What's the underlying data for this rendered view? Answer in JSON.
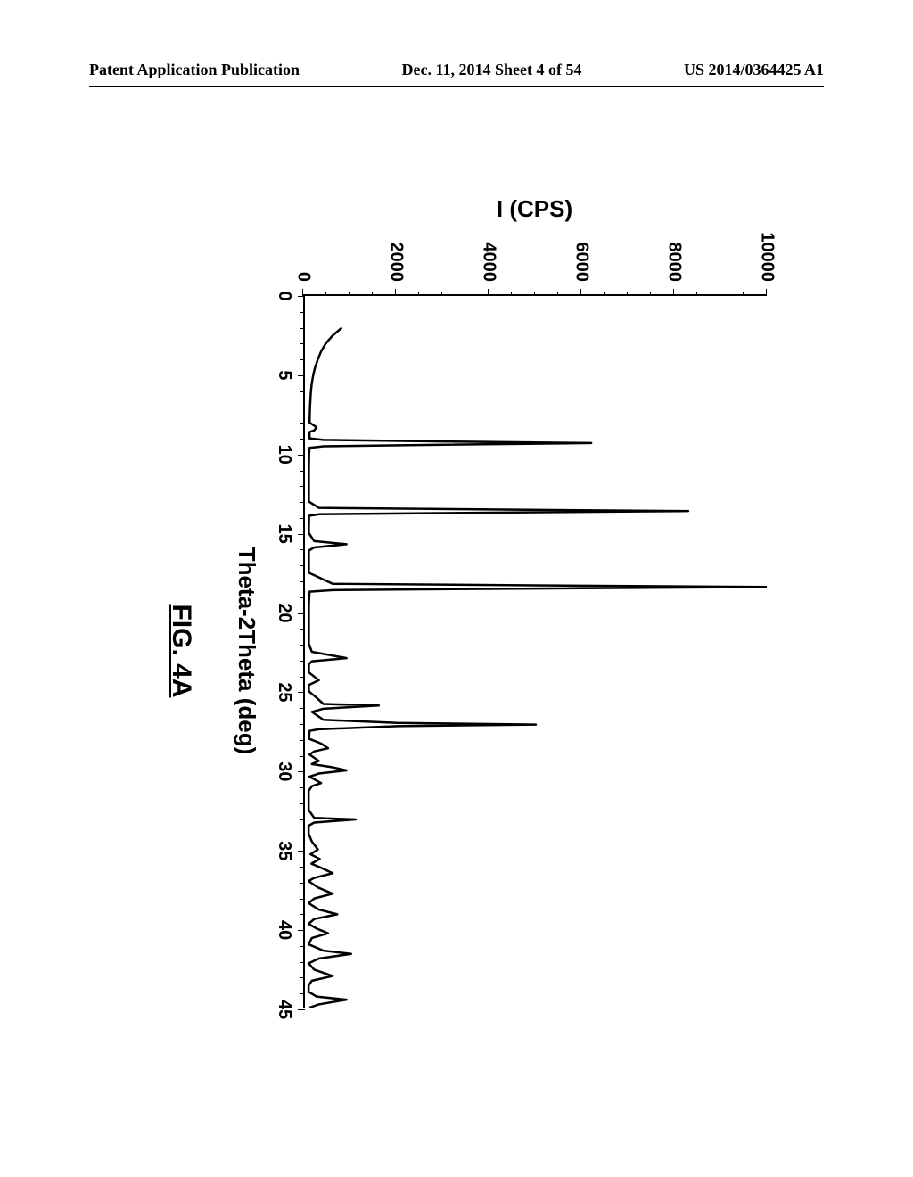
{
  "header": {
    "left": "Patent Application Publication",
    "center": "Dec. 11, 2014  Sheet 4 of 54",
    "right": "US 2014/0364425 A1"
  },
  "chart": {
    "type": "line",
    "x_axis_title": "Theta-2Theta (deg)",
    "y_axis_title": "I (CPS)",
    "figure_caption": "FIG. 4A",
    "xlim": [
      0,
      45
    ],
    "ylim": [
      0,
      10000
    ],
    "xtick_step": 5,
    "ytick_step": 2000,
    "xtick_minor_step": 1,
    "ytick_minor_step": 500,
    "line_color": "#000000",
    "line_width": 2.5,
    "background_color": "#ffffff",
    "title_fontsize": 26,
    "label_fontsize": 20,
    "caption_fontsize": 30,
    "data_points": [
      [
        2.0,
        800
      ],
      [
        2.5,
        600
      ],
      [
        3.0,
        450
      ],
      [
        3.5,
        350
      ],
      [
        4.0,
        280
      ],
      [
        4.5,
        220
      ],
      [
        5.0,
        180
      ],
      [
        5.5,
        150
      ],
      [
        6.0,
        130
      ],
      [
        6.5,
        120
      ],
      [
        7.0,
        110
      ],
      [
        7.5,
        105
      ],
      [
        8.0,
        100
      ],
      [
        8.3,
        250
      ],
      [
        8.5,
        200
      ],
      [
        8.6,
        100
      ],
      [
        9.0,
        100
      ],
      [
        9.1,
        400
      ],
      [
        9.2,
        3000
      ],
      [
        9.3,
        6200
      ],
      [
        9.4,
        3000
      ],
      [
        9.5,
        400
      ],
      [
        9.6,
        100
      ],
      [
        10.0,
        90
      ],
      [
        11.0,
        85
      ],
      [
        12.0,
        85
      ],
      [
        13.0,
        85
      ],
      [
        13.4,
        300
      ],
      [
        13.5,
        4000
      ],
      [
        13.6,
        8300
      ],
      [
        13.7,
        4000
      ],
      [
        13.8,
        300
      ],
      [
        13.9,
        90
      ],
      [
        14.5,
        85
      ],
      [
        15.0,
        85
      ],
      [
        15.5,
        200
      ],
      [
        15.7,
        900
      ],
      [
        15.9,
        200
      ],
      [
        16.1,
        85
      ],
      [
        17.0,
        85
      ],
      [
        17.5,
        85
      ],
      [
        18.2,
        600
      ],
      [
        18.3,
        5000
      ],
      [
        18.4,
        10200
      ],
      [
        18.5,
        5000
      ],
      [
        18.6,
        600
      ],
      [
        18.7,
        100
      ],
      [
        19.5,
        85
      ],
      [
        20.0,
        85
      ],
      [
        21.0,
        85
      ],
      [
        22.0,
        85
      ],
      [
        22.5,
        150
      ],
      [
        22.9,
        900
      ],
      [
        23.1,
        150
      ],
      [
        23.3,
        85
      ],
      [
        23.8,
        85
      ],
      [
        24.3,
        300
      ],
      [
        24.6,
        85
      ],
      [
        25.0,
        85
      ],
      [
        25.4,
        250
      ],
      [
        25.8,
        400
      ],
      [
        25.9,
        1600
      ],
      [
        26.1,
        400
      ],
      [
        26.3,
        150
      ],
      [
        26.8,
        400
      ],
      [
        27.0,
        2000
      ],
      [
        27.1,
        5000
      ],
      [
        27.2,
        2000
      ],
      [
        27.4,
        300
      ],
      [
        27.5,
        100
      ],
      [
        28.0,
        90
      ],
      [
        28.3,
        350
      ],
      [
        28.6,
        500
      ],
      [
        28.8,
        200
      ],
      [
        29.0,
        100
      ],
      [
        29.4,
        300
      ],
      [
        29.6,
        150
      ],
      [
        29.8,
        600
      ],
      [
        30.0,
        900
      ],
      [
        30.2,
        300
      ],
      [
        30.4,
        100
      ],
      [
        30.8,
        350
      ],
      [
        31.0,
        150
      ],
      [
        31.3,
        80
      ],
      [
        32.0,
        80
      ],
      [
        32.5,
        80
      ],
      [
        33.0,
        200
      ],
      [
        33.1,
        1100
      ],
      [
        33.3,
        200
      ],
      [
        33.5,
        80
      ],
      [
        34.0,
        80
      ],
      [
        34.5,
        150
      ],
      [
        35.0,
        280
      ],
      [
        35.3,
        120
      ],
      [
        35.6,
        320
      ],
      [
        35.9,
        140
      ],
      [
        36.2,
        380
      ],
      [
        36.5,
        600
      ],
      [
        36.8,
        200
      ],
      [
        37.0,
        80
      ],
      [
        37.4,
        280
      ],
      [
        37.8,
        600
      ],
      [
        38.1,
        200
      ],
      [
        38.4,
        80
      ],
      [
        38.8,
        300
      ],
      [
        39.1,
        700
      ],
      [
        39.4,
        200
      ],
      [
        39.7,
        80
      ],
      [
        40.0,
        250
      ],
      [
        40.3,
        500
      ],
      [
        40.6,
        150
      ],
      [
        41.0,
        80
      ],
      [
        41.4,
        400
      ],
      [
        41.6,
        1000
      ],
      [
        41.9,
        300
      ],
      [
        42.2,
        80
      ],
      [
        42.6,
        200
      ],
      [
        43.0,
        600
      ],
      [
        43.3,
        150
      ],
      [
        43.6,
        80
      ],
      [
        44.0,
        80
      ],
      [
        44.3,
        250
      ],
      [
        44.5,
        900
      ],
      [
        44.8,
        300
      ],
      [
        45.0,
        100
      ]
    ]
  }
}
